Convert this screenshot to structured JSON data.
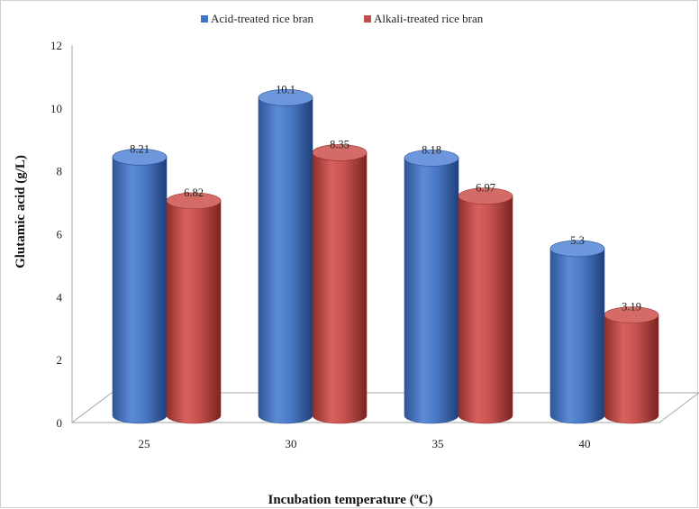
{
  "chart_data": {
    "type": "bar",
    "title": "",
    "xlabel": "Incubation temperature (ºC)",
    "ylabel": "Glutamic acid (g/L)",
    "categories": [
      "25",
      "30",
      "35",
      "40"
    ],
    "ylim": [
      0,
      12
    ],
    "yticks": [
      "0",
      "2",
      "4",
      "6",
      "8",
      "10",
      "12"
    ],
    "series": [
      {
        "name": "Acid-treated rice bran",
        "values": [
          8.21,
          10.1,
          8.18,
          5.3
        ],
        "labels": [
          "8.21",
          "10.1",
          "8.18",
          "5.3"
        ],
        "color": "#4472c4"
      },
      {
        "name": "Alkali-treated rice bran",
        "values": [
          6.82,
          8.35,
          6.97,
          3.19
        ],
        "labels": [
          "6.82",
          "8.35",
          "6.97",
          "3.19"
        ],
        "color": "#c0504d"
      }
    ],
    "legend": "top",
    "grid": false,
    "style": "3d-cylinder"
  }
}
